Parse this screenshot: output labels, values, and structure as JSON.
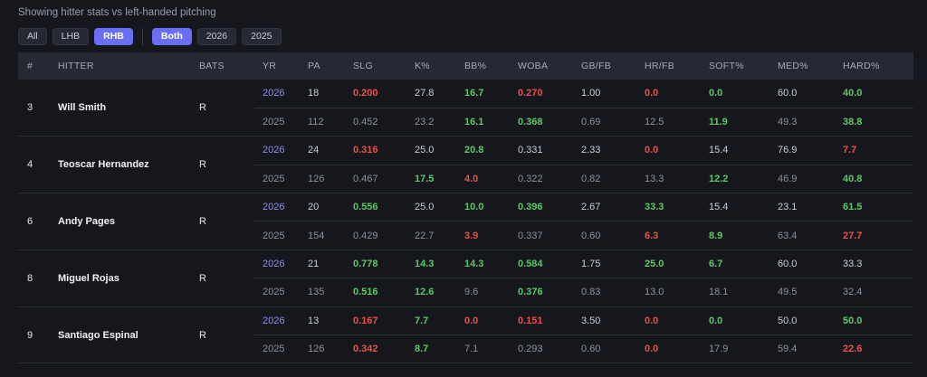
{
  "caption": "Showing hitter stats vs left-handed pitching",
  "filters": {
    "hand": [
      {
        "label": "All",
        "active": false
      },
      {
        "label": "LHB",
        "active": false
      },
      {
        "label": "RHB",
        "active": true
      }
    ],
    "year": [
      {
        "label": "Both",
        "active": true
      },
      {
        "label": "2026",
        "active": false
      },
      {
        "label": "2025",
        "active": false
      }
    ]
  },
  "colors": {
    "accent": "#6a6ef2",
    "good": "#5cc767",
    "bad": "#e5534b",
    "year_link": "#8a8ef7"
  },
  "columns": [
    "#",
    "HITTER",
    "BATS",
    "YR",
    "PA",
    "SLG",
    "K%",
    "BB%",
    "WOBA",
    "GB/FB",
    "HR/FB",
    "SOFT%",
    "MED%",
    "HARD%"
  ],
  "players": [
    {
      "num": "3",
      "name": "Will Smith",
      "bats": "R",
      "rows": [
        {
          "yr": "2026",
          "pa": "18",
          "slg": "0.200",
          "k": "27.8",
          "bb": "16.7",
          "woba": "0.270",
          "gbfb": "1.00",
          "hrfb": "0.0",
          "soft": "0.0",
          "med": "60.0",
          "hard": "40.0",
          "hl": {
            "slg": "red",
            "bb": "green",
            "woba": "red",
            "hrfb": "red",
            "soft": "green",
            "hard": "green"
          }
        },
        {
          "yr": "2025",
          "pa": "112",
          "slg": "0.452",
          "k": "23.2",
          "bb": "16.1",
          "woba": "0.368",
          "gbfb": "0.69",
          "hrfb": "12.5",
          "soft": "11.9",
          "med": "49.3",
          "hard": "38.8",
          "hl": {
            "bb": "green",
            "woba": "green",
            "soft": "green",
            "hard": "green"
          }
        }
      ]
    },
    {
      "num": "4",
      "name": "Teoscar Hernandez",
      "bats": "R",
      "rows": [
        {
          "yr": "2026",
          "pa": "24",
          "slg": "0.316",
          "k": "25.0",
          "bb": "20.8",
          "woba": "0.331",
          "gbfb": "2.33",
          "hrfb": "0.0",
          "soft": "15.4",
          "med": "76.9",
          "hard": "7.7",
          "hl": {
            "slg": "red",
            "bb": "green",
            "hrfb": "red",
            "hard": "red"
          }
        },
        {
          "yr": "2025",
          "pa": "126",
          "slg": "0.467",
          "k": "17.5",
          "bb": "4.0",
          "woba": "0.322",
          "gbfb": "0.82",
          "hrfb": "13.3",
          "soft": "12.2",
          "med": "46.9",
          "hard": "40.8",
          "hl": {
            "k": "green",
            "bb": "red",
            "soft": "green",
            "hard": "green"
          }
        }
      ]
    },
    {
      "num": "6",
      "name": "Andy Pages",
      "bats": "R",
      "rows": [
        {
          "yr": "2026",
          "pa": "20",
          "slg": "0.556",
          "k": "25.0",
          "bb": "10.0",
          "woba": "0.396",
          "gbfb": "2.67",
          "hrfb": "33.3",
          "soft": "15.4",
          "med": "23.1",
          "hard": "61.5",
          "hl": {
            "slg": "green",
            "bb": "green",
            "woba": "green",
            "hrfb": "green",
            "hard": "green"
          }
        },
        {
          "yr": "2025",
          "pa": "154",
          "slg": "0.429",
          "k": "22.7",
          "bb": "3.9",
          "woba": "0.337",
          "gbfb": "0.60",
          "hrfb": "6.3",
          "soft": "8.9",
          "med": "63.4",
          "hard": "27.7",
          "hl": {
            "bb": "red",
            "hrfb": "red",
            "soft": "green",
            "hard": "red"
          }
        }
      ]
    },
    {
      "num": "8",
      "name": "Miguel Rojas",
      "bats": "R",
      "rows": [
        {
          "yr": "2026",
          "pa": "21",
          "slg": "0.778",
          "k": "14.3",
          "bb": "14.3",
          "woba": "0.584",
          "gbfb": "1.75",
          "hrfb": "25.0",
          "soft": "6.7",
          "med": "60.0",
          "hard": "33.3",
          "hl": {
            "slg": "green",
            "k": "green",
            "bb": "green",
            "woba": "green",
            "hrfb": "green",
            "soft": "green"
          }
        },
        {
          "yr": "2025",
          "pa": "135",
          "slg": "0.516",
          "k": "12.6",
          "bb": "9.6",
          "woba": "0.376",
          "gbfb": "0.83",
          "hrfb": "13.0",
          "soft": "18.1",
          "med": "49.5",
          "hard": "32.4",
          "hl": {
            "slg": "green",
            "k": "green",
            "woba": "green"
          }
        }
      ]
    },
    {
      "num": "9",
      "name": "Santiago Espinal",
      "bats": "R",
      "rows": [
        {
          "yr": "2026",
          "pa": "13",
          "slg": "0.167",
          "k": "7.7",
          "bb": "0.0",
          "woba": "0.151",
          "gbfb": "3.50",
          "hrfb": "0.0",
          "soft": "0.0",
          "med": "50.0",
          "hard": "50.0",
          "hl": {
            "slg": "red",
            "k": "green",
            "bb": "red",
            "woba": "red",
            "hrfb": "red",
            "soft": "green",
            "hard": "green"
          }
        },
        {
          "yr": "2025",
          "pa": "126",
          "slg": "0.342",
          "k": "8.7",
          "bb": "7.1",
          "woba": "0.293",
          "gbfb": "0.60",
          "hrfb": "0.0",
          "soft": "17.9",
          "med": "59.4",
          "hard": "22.6",
          "hl": {
            "slg": "red",
            "k": "green",
            "hrfb": "red",
            "hard": "red"
          }
        }
      ]
    }
  ]
}
